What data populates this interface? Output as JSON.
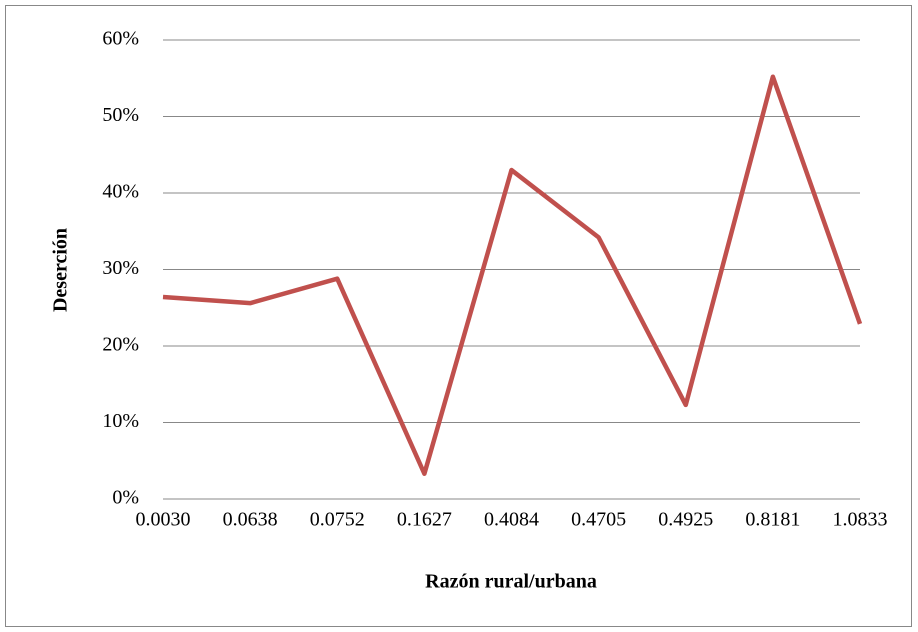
{
  "chart_data": {
    "type": "line",
    "xlabel": "Razón rural/urbana",
    "ylabel": "Deserción",
    "categories": [
      "0.0030",
      "0.0638",
      "0.0752",
      "0.1627",
      "0.4084",
      "0.4705",
      "0.4925",
      "0.8181",
      "1.0833"
    ],
    "series": [
      {
        "name": "Deserción",
        "color": "#c0504d",
        "values": [
          26.4,
          25.6,
          28.8,
          3.3,
          43.0,
          34.2,
          12.3,
          55.2,
          22.9
        ]
      }
    ],
    "ylim": [
      0,
      60
    ],
    "yticks": [
      {
        "value": 0,
        "label": "0%"
      },
      {
        "value": 10,
        "label": "10%"
      },
      {
        "value": 20,
        "label": "20%"
      },
      {
        "value": 30,
        "label": "30%"
      },
      {
        "value": 40,
        "label": "40%"
      },
      {
        "value": 50,
        "label": "50%"
      },
      {
        "value": 60,
        "label": "60%"
      }
    ],
    "grid": true
  }
}
